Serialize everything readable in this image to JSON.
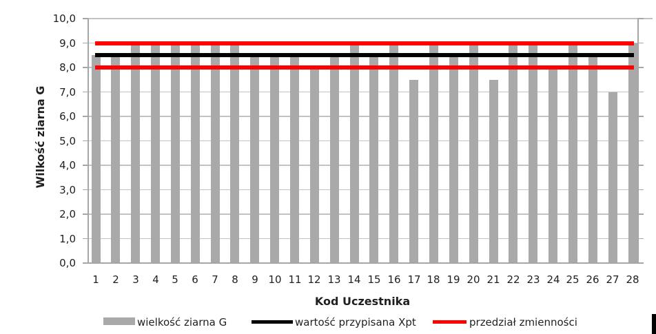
{
  "chart_data": {
    "type": "bar",
    "title": "",
    "xlabel": "Kod Uczestnika",
    "ylabel": "Wilkość ziarna G",
    "categories": [
      "1",
      "2",
      "3",
      "4",
      "5",
      "6",
      "7",
      "8",
      "9",
      "10",
      "11",
      "12",
      "13",
      "14",
      "15",
      "16",
      "17",
      "18",
      "19",
      "20",
      "21",
      "22",
      "23",
      "24",
      "25",
      "26",
      "27",
      "28"
    ],
    "series": [
      {
        "name": "wielkość ziarna G",
        "kind": "bar",
        "color": "#a9a9a9",
        "values": [
          8.5,
          8.5,
          9.0,
          9.0,
          9.0,
          9.0,
          9.0,
          9.0,
          8.5,
          8.5,
          8.5,
          8.0,
          8.5,
          9.0,
          8.5,
          9.0,
          7.5,
          9.0,
          8.5,
          9.0,
          7.5,
          9.0,
          9.0,
          8.0,
          9.0,
          8.5,
          7.0,
          9.0
        ]
      },
      {
        "name": "wartość przypisana Xpt",
        "kind": "line",
        "color": "#000000",
        "value": 8.5
      },
      {
        "name": "przedział zmienności",
        "kind": "line-pair",
        "color": "#ff0000",
        "values": [
          9.0,
          8.0
        ]
      }
    ],
    "ylim": [
      0,
      10
    ],
    "ytick_step": 1.0,
    "ytick_labels": [
      "0,0",
      "1,0",
      "2,0",
      "3,0",
      "4,0",
      "5,0",
      "6,0",
      "7,0",
      "8,0",
      "9,0",
      "10,0"
    ],
    "grid": "horizontal",
    "legend_position": "bottom"
  },
  "colors": {
    "bar": "#a9a9a9",
    "assigned_line": "#000000",
    "range_line": "#ff0000",
    "gridline": "#c2c2c2",
    "axis": "#a6a6a6",
    "text": "#1f1f1f"
  }
}
